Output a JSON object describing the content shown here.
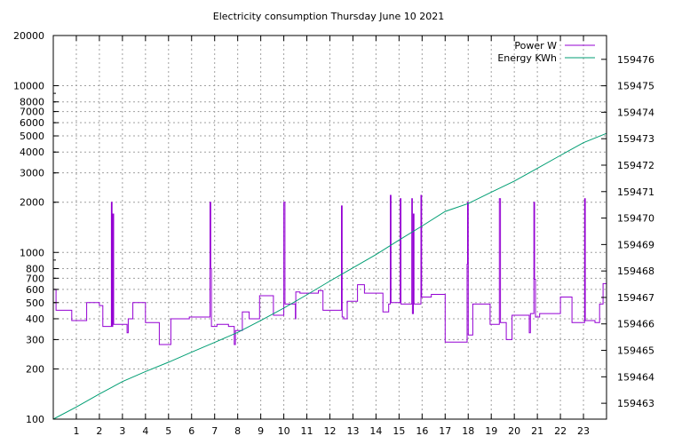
{
  "chart_data": {
    "type": "line",
    "title": "Electricity consumption Thursday June 10 2021",
    "grid": true,
    "legend_position": "top-right",
    "x_axis": {
      "range": [
        0,
        24
      ],
      "ticks": [
        1,
        2,
        3,
        4,
        5,
        6,
        7,
        8,
        9,
        10,
        11,
        12,
        13,
        14,
        15,
        16,
        17,
        18,
        19,
        20,
        21,
        22,
        23
      ]
    },
    "y_axis_left": {
      "scale": "log",
      "range": [
        100,
        20000
      ],
      "ticks": [
        100,
        200,
        300,
        400,
        500,
        600,
        700,
        800,
        1000,
        2000,
        3000,
        4000,
        5000,
        6000,
        7000,
        8000,
        10000,
        20000
      ]
    },
    "y_axis_right": {
      "scale": "linear",
      "range": [
        159462.4,
        159476.9
      ],
      "ticks": [
        159463,
        159464,
        159465,
        159466,
        159467,
        159468,
        159469,
        159470,
        159471,
        159472,
        159473,
        159474,
        159475,
        159476
      ]
    },
    "series": [
      {
        "name": "Power W",
        "axis": "left",
        "color": "#9400d3",
        "step": true,
        "points": [
          [
            0,
            600
          ],
          [
            0.12,
            450
          ],
          [
            0.8,
            390
          ],
          [
            1.45,
            500
          ],
          [
            2.0,
            480
          ],
          [
            2.15,
            360
          ],
          [
            2.5,
            360
          ],
          [
            2.52,
            2000
          ],
          [
            2.55,
            360
          ],
          [
            2.58,
            1700
          ],
          [
            2.62,
            370
          ],
          [
            3.2,
            330
          ],
          [
            3.25,
            400
          ],
          [
            3.45,
            500
          ],
          [
            4.0,
            380
          ],
          [
            4.6,
            280
          ],
          [
            5.1,
            400
          ],
          [
            5.9,
            410
          ],
          [
            6.6,
            410
          ],
          [
            6.8,
            2000
          ],
          [
            6.83,
            800
          ],
          [
            6.86,
            360
          ],
          [
            7.1,
            370
          ],
          [
            7.6,
            360
          ],
          [
            7.85,
            280
          ],
          [
            7.9,
            340
          ],
          [
            8.2,
            440
          ],
          [
            8.5,
            400
          ],
          [
            8.95,
            550
          ],
          [
            9.55,
            420
          ],
          [
            10.0,
            2000
          ],
          [
            10.05,
            490
          ],
          [
            10.5,
            400
          ],
          [
            10.52,
            580
          ],
          [
            10.7,
            570
          ],
          [
            11.5,
            590
          ],
          [
            11.7,
            450
          ],
          [
            12.5,
            1900
          ],
          [
            12.53,
            410
          ],
          [
            12.6,
            400
          ],
          [
            12.75,
            510
          ],
          [
            13.2,
            640
          ],
          [
            13.5,
            570
          ],
          [
            14.3,
            440
          ],
          [
            14.55,
            490
          ],
          [
            14.62,
            2200
          ],
          [
            14.65,
            500
          ],
          [
            15.05,
            2100
          ],
          [
            15.08,
            490
          ],
          [
            15.55,
            2100
          ],
          [
            15.58,
            430
          ],
          [
            15.62,
            1700
          ],
          [
            15.65,
            490
          ],
          [
            15.95,
            2200
          ],
          [
            15.98,
            540
          ],
          [
            16.4,
            560
          ],
          [
            17.0,
            290
          ],
          [
            17.95,
            850
          ],
          [
            17.97,
            2000
          ],
          [
            18.0,
            320
          ],
          [
            18.2,
            490
          ],
          [
            18.95,
            370
          ],
          [
            19.35,
            2100
          ],
          [
            19.4,
            380
          ],
          [
            19.65,
            300
          ],
          [
            19.9,
            420
          ],
          [
            20.65,
            330
          ],
          [
            20.7,
            430
          ],
          [
            20.85,
            2000
          ],
          [
            20.88,
            690
          ],
          [
            20.92,
            410
          ],
          [
            21.1,
            430
          ],
          [
            22.0,
            540
          ],
          [
            22.5,
            380
          ],
          [
            23.05,
            2100
          ],
          [
            23.08,
            390
          ],
          [
            23.5,
            380
          ],
          [
            23.7,
            490
          ],
          [
            23.85,
            650
          ],
          [
            24.0,
            650
          ]
        ]
      },
      {
        "name": "Energy KWh",
        "axis": "right",
        "color": "#009e73",
        "step": false,
        "points": [
          [
            0,
            159462.4
          ],
          [
            1,
            159462.86
          ],
          [
            2,
            159463.35
          ],
          [
            3,
            159463.82
          ],
          [
            4,
            159464.2
          ],
          [
            5,
            159464.55
          ],
          [
            6,
            159464.93
          ],
          [
            7,
            159465.3
          ],
          [
            8,
            159465.68
          ],
          [
            9,
            159466.13
          ],
          [
            10,
            159466.6
          ],
          [
            11,
            159467.1
          ],
          [
            12,
            159467.62
          ],
          [
            13,
            159468.12
          ],
          [
            14,
            159468.62
          ],
          [
            15,
            159469.17
          ],
          [
            16,
            159469.7
          ],
          [
            17,
            159470.25
          ],
          [
            18,
            159470.55
          ],
          [
            19,
            159470.98
          ],
          [
            20,
            159471.4
          ],
          [
            21,
            159471.88
          ],
          [
            22,
            159472.37
          ],
          [
            23,
            159472.85
          ],
          [
            24,
            159473.2
          ]
        ]
      }
    ]
  }
}
